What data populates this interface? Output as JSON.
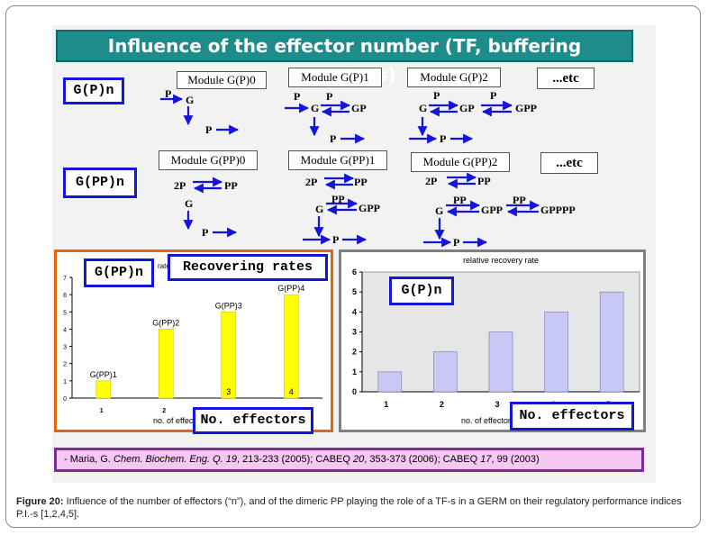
{
  "title": "Influence of the effector number (TF, buffering reactions)",
  "labels": {
    "gp_n": "G(P)n",
    "gpp_n": "G(PP)n",
    "etc1": "...etc",
    "etc2": "...etc",
    "recovering_rates": "Recovering rates",
    "no_effectors_left": "No. effectors",
    "no_effectors_right": "No. effectors"
  },
  "modules_p": [
    "Module G(P)0",
    "Module G(P)1",
    "Module G(P)2"
  ],
  "modules_pp": [
    "Module G(PP)0",
    "Module G(PP)1",
    "Module G(PP)2"
  ],
  "schemes": {
    "p0": {
      "p": "P",
      "g": "G",
      "out": "P"
    },
    "p1": {
      "p1": "P",
      "p2": "P",
      "g": "G",
      "gp": "GP",
      "out": "P"
    },
    "p2": {
      "p1": "P",
      "p2": "P",
      "g": "G",
      "gp": "GP",
      "gpp": "GPP",
      "out": "P"
    },
    "pp0": {
      "twop": "2P",
      "pp": "PP",
      "g": "G",
      "out": "P"
    },
    "pp1": {
      "twop": "2P",
      "pp": "PP",
      "pp2": "PP",
      "g": "G",
      "gpp": "GPP",
      "out": "P"
    },
    "pp2": {
      "twop": "2P",
      "pp": "PP",
      "ppa": "PP",
      "ppb": "PP",
      "g": "G",
      "gpp": "GPP",
      "gpppp": "GPPPP",
      "out": "P"
    }
  },
  "chart_data": [
    {
      "type": "bar",
      "title": "Recovering rates",
      "xlabel": "no. of effectors",
      "ylabel": "rate",
      "categories": [
        "1",
        "2",
        "3",
        "4"
      ],
      "values": [
        1,
        4,
        5,
        6
      ],
      "bar_labels": [
        "G(PP)1",
        "G(PP)2",
        "G(PP)3",
        "G(PP)4"
      ],
      "inner_labels": [
        "",
        "",
        "3",
        "4"
      ],
      "y_ticks": [
        "0",
        "1",
        "2",
        "3",
        "4",
        "5",
        "6",
        "7"
      ],
      "ylim": [
        0,
        7
      ],
      "colors": {
        "bar": "#ffff00",
        "border": "#e8650c"
      }
    },
    {
      "type": "bar",
      "title": "relative recovery rate",
      "xlabel": "no. of effectors",
      "categories": [
        "1",
        "2",
        "3",
        "4",
        "5"
      ],
      "values": [
        1,
        2,
        3,
        4,
        5
      ],
      "y_ticks": [
        "0",
        "1",
        "2",
        "3",
        "4",
        "5",
        "6"
      ],
      "ylim": [
        0,
        6
      ],
      "colors": {
        "bar": "#c8c8f4",
        "border": "#808080"
      }
    }
  ],
  "reference": {
    "lead": "- Maria, G. ",
    "j1": "Chem. Biochem. Eng. Q. 19",
    "t1": ", 213-233 (2005); CABEQ ",
    "j2": "20",
    "t2": ", 353-373 (2006); CABEQ ",
    "j3": "17",
    "t3": ", 99 (2003)"
  },
  "caption": {
    "figure": "Figure 20:",
    "text": " Influence of the number of effectors (“n”), and of the dimeric PP playing the role of a TF-s in a GERM on their regulatory performance indices P.I.-s [1,2,4,5]."
  }
}
